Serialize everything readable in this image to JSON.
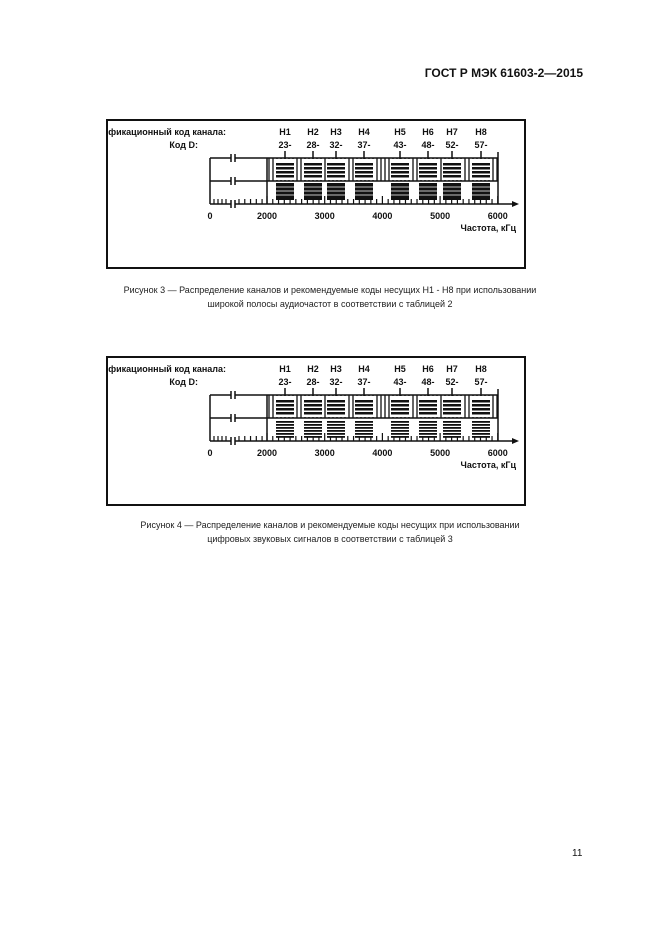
{
  "header": {
    "standard": "ГОСТ Р МЭК 61603-2—2015"
  },
  "figures": [
    {
      "id_label": "Идентификационный код канала:",
      "code_label": "Код D:",
      "channels": [
        "H1",
        "H2",
        "H3",
        "H4",
        "H5",
        "H6",
        "H7",
        "H8"
      ],
      "codes": [
        "23-",
        "28-",
        "32-",
        "37-",
        "43-",
        "48-",
        "52-",
        "57-"
      ],
      "axis_ticks": [
        "0",
        "2000",
        "3000",
        "4000",
        "5000",
        "6000"
      ],
      "axis_label": "Частота, кГц",
      "lower_blocks_style": "solid",
      "caption_line1": "Рисунок 3 — Распределение каналов и рекомендуемые коды несущих H1 - H8 при использовании",
      "caption_line2": "широкой полосы аудиочастот в соответствии с таблицей 2"
    },
    {
      "id_label": "Идентификационный код канала:",
      "code_label": "Код D:",
      "channels": [
        "H1",
        "H2",
        "H3",
        "H4",
        "H5",
        "H6",
        "H7",
        "H8"
      ],
      "codes": [
        "23-",
        "28-",
        "32-",
        "37-",
        "43-",
        "48-",
        "52-",
        "57-"
      ],
      "axis_ticks": [
        "0",
        "2000",
        "3000",
        "4000",
        "5000",
        "6000"
      ],
      "axis_label": "Частота, кГц",
      "lower_blocks_style": "striped",
      "caption_line1": "Рисунок 4 — Распределение каналов и рекомендуемые коды несущих при использовании",
      "caption_line2": "цифровых звуковых сигналов в соответствии с таблицей 3"
    }
  ],
  "footer": {
    "page_number": "11"
  }
}
